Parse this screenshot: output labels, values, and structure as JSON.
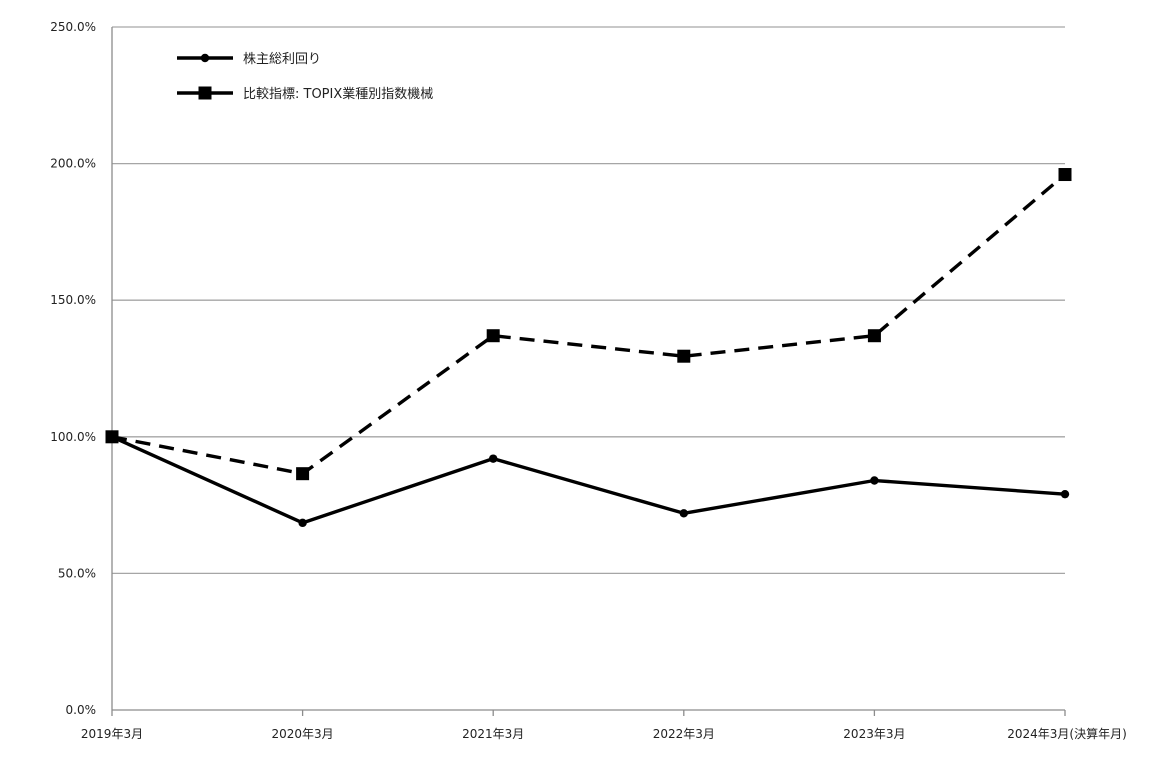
{
  "chart_data": {
    "type": "line",
    "title": "",
    "xlabel": "",
    "ylabel": "",
    "categories": [
      "2019年3月",
      "2020年3月",
      "2021年3月",
      "2022年3月",
      "2023年3月",
      "2024年3月(決算年月)"
    ],
    "ylim": [
      0,
      250
    ],
    "yticks": [
      "0.0%",
      "50.0%",
      "100.0%",
      "150.0%",
      "200.0%",
      "250.0%"
    ],
    "grid": true,
    "legend_position": "top-left",
    "series": [
      {
        "name": "株主総利回り",
        "values": [
          100,
          68.5,
          92,
          72,
          84,
          79
        ],
        "line_style": "solid",
        "marker": "circle",
        "color": "#000000"
      },
      {
        "name": "比較指標: TOPIX業種別指数機械",
        "values": [
          100,
          86.5,
          137,
          129.5,
          137,
          196
        ],
        "line_style": "dashed",
        "marker": "square",
        "color": "#000000"
      }
    ]
  }
}
